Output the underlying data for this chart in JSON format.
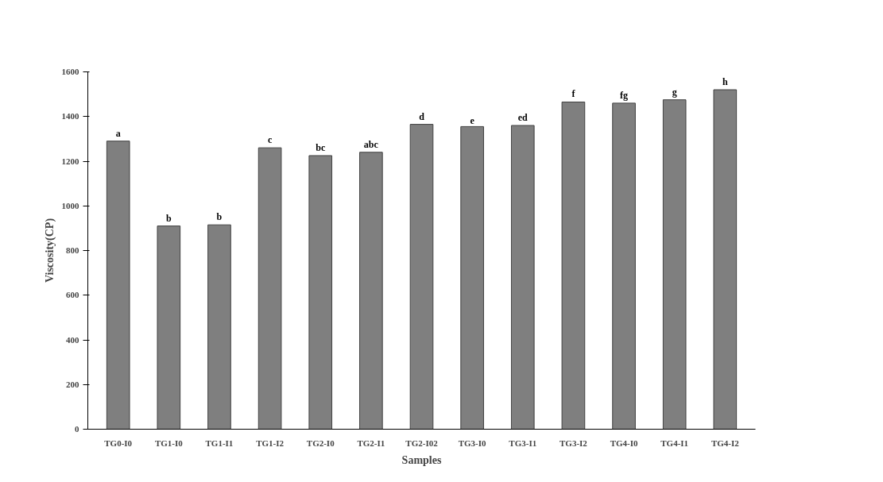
{
  "chart_data": {
    "type": "bar",
    "xlabel": "Samples",
    "ylabel": "Viscosity(CP)",
    "categories": [
      "TG0-I0",
      "TG1-I0",
      "TG1-I1",
      "TG1-I2",
      "TG2-I0",
      "TG2-I1",
      "TG2-I02",
      "TG3-I0",
      "TG3-I1",
      "TG3-I2",
      "TG4-I0",
      "TG4-I1",
      "TG4-I2"
    ],
    "values": [
      1290,
      910,
      915,
      1260,
      1225,
      1240,
      1365,
      1355,
      1360,
      1465,
      1460,
      1475,
      1520
    ],
    "color": "#7f7f7f",
    "ylim": [
      0,
      1600
    ],
    "yticks": [
      0,
      200,
      400,
      600,
      800,
      1000,
      1200,
      1400,
      1600
    ],
    "grid": false,
    "annotations": [
      {
        "text": "a",
        "x": "TG0-I0",
        "y": 1290
      },
      {
        "text": "b",
        "x": "TG1-I0",
        "y": 910
      },
      {
        "text": "b",
        "x": "TG1-I1",
        "y": 915
      },
      {
        "text": "c",
        "x": "TG1-I2",
        "y": 1260
      },
      {
        "text": "bc",
        "x": "TG2-I0",
        "y": 1225
      },
      {
        "text": "abc",
        "x": "TG2-I1",
        "y": 1240
      },
      {
        "text": "d",
        "x": "TG2-I02",
        "y": 1365
      },
      {
        "text": "e",
        "x": "TG3-I0",
        "y": 1355
      },
      {
        "text": "ed",
        "x": "TG3-I1",
        "y": 1360
      },
      {
        "text": "f",
        "x": "TG3-I2",
        "y": 1465
      },
      {
        "text": "fg",
        "x": "TG4-I0",
        "y": 1460
      },
      {
        "text": "g",
        "x": "TG4-I1",
        "y": 1475
      },
      {
        "text": "h",
        "x": "TG4-I2",
        "y": 1520
      }
    ]
  }
}
